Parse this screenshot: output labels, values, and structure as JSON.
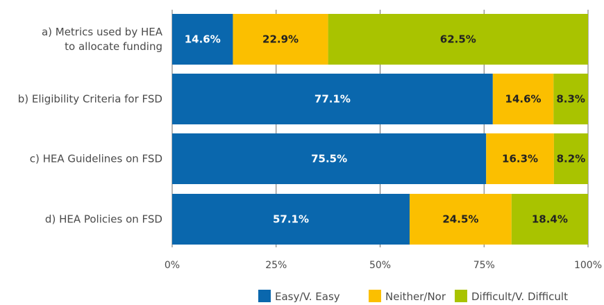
{
  "chart_data": {
    "type": "bar",
    "orientation": "horizontal",
    "stacked": true,
    "categories": [
      [
        "a) Metrics used by HEA",
        "to allocate funding"
      ],
      [
        "b) Eligibility Criteria for FSD"
      ],
      [
        "c) HEA Guidelines on FSD"
      ],
      [
        "d) HEA Policies on FSD"
      ]
    ],
    "series": [
      {
        "name": "Easy/V. Easy",
        "color": "#0a67ad",
        "label_color": "#ffffff",
        "values": [
          14.6,
          77.1,
          75.5,
          57.1
        ]
      },
      {
        "name": "Neither/Nor",
        "color": "#fbbf00",
        "label_color": "#222222",
        "values": [
          22.9,
          14.6,
          16.3,
          24.5
        ]
      },
      {
        "name": "Difficult/V. Difficult",
        "color": "#a9c300",
        "label_color": "#222222",
        "values": [
          62.5,
          8.3,
          8.2,
          18.4
        ]
      }
    ],
    "data_labels": [
      [
        "14.6%",
        "22.9%",
        "62.5%"
      ],
      [
        "77.1%",
        "14.6%",
        "8.3%"
      ],
      [
        "75.5%",
        "16.3%",
        "8.2%"
      ],
      [
        "57.1%",
        "24.5%",
        "18.4%"
      ]
    ],
    "xlim": [
      0,
      100
    ],
    "xticks": [
      "0%",
      "25%",
      "50%",
      "75%",
      "100%"
    ],
    "grid": true,
    "legend_position": "bottom"
  }
}
